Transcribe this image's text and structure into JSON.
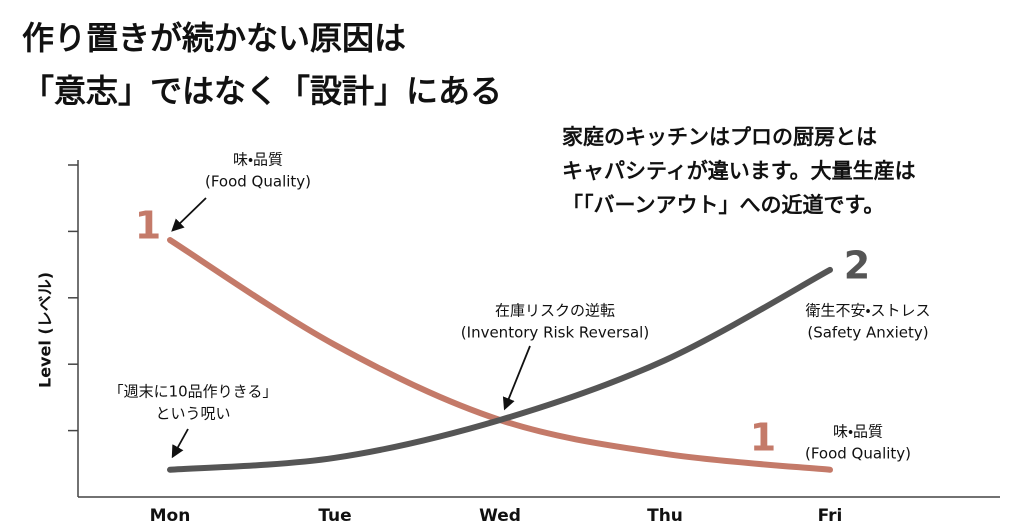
{
  "chart_data": {
    "type": "line",
    "title_lines": [
      "作り置きが続かない原因は",
      "「意志」ではなく「設計」にある"
    ],
    "note_lines": [
      "家庭のキッチンはプロの厨房とは",
      "キャパシティが違います。大量生産は",
      "「「バーンアウト」への近道です。"
    ],
    "y_label": "Level (レベル)",
    "categories": [
      "Mon",
      "Tue",
      "Wed",
      "Thu",
      "Fri"
    ],
    "series": [
      {
        "color": "#c47a69",
        "values": [
          3.87,
          2.29,
          1.16,
          0.65,
          0.41
        ]
      },
      {
        "color": "#555555",
        "values": [
          0.41,
          0.59,
          1.16,
          2.06,
          3.42
        ]
      }
    ],
    "ylim": [
      0,
      5
    ],
    "yticks": [
      1,
      2,
      3,
      4,
      5
    ],
    "annotations": [
      {
        "lines": [
          "1"
        ]
      },
      {
        "lines": [
          "味・品質",
          "(Food Quality)"
        ]
      },
      {
        "lines": [
          "在庫リスクの逆転",
          "(Inventory Risk Reversal)"
        ]
      },
      {
        "lines": [
          "「週末に10品作りきる」",
          "という呪い"
        ]
      },
      {
        "lines": [
          "1"
        ]
      },
      {
        "lines": [
          "味・品質",
          "(Food Quality)"
        ]
      },
      {
        "lines": [
          "2"
        ]
      },
      {
        "lines": [
          "衛生不安・ストレス",
          "(Safety Anxiety)"
        ]
      }
    ]
  }
}
